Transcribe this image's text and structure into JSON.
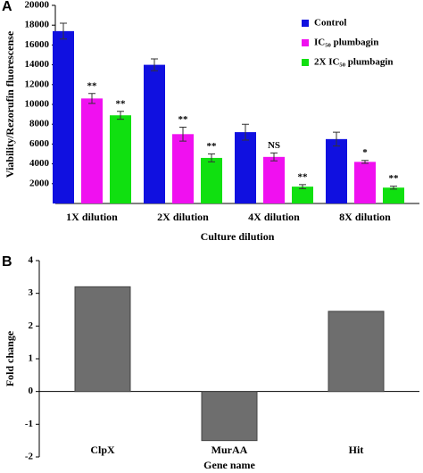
{
  "chart_data": [
    {
      "type": "bar",
      "panel": "A",
      "ylabel": "Viability/Rezorufin fluorescense",
      "xlabel": "Culture dilution",
      "categories": [
        "1X dilution",
        "2X dilution",
        "4X dilution",
        "8X dilution"
      ],
      "series": [
        {
          "name": "Control",
          "color": "#1010e0",
          "values": [
            17400,
            14000,
            7200,
            6500
          ],
          "errors": [
            800,
            600,
            800,
            700
          ],
          "significance": [
            null,
            null,
            null,
            null
          ]
        },
        {
          "name": "IC₅₀ plumbagin",
          "color": "#f010f0",
          "values": [
            10600,
            7000,
            4700,
            4200
          ],
          "errors": [
            500,
            700,
            400,
            150
          ],
          "significance": [
            "**",
            "**",
            "NS",
            "*"
          ]
        },
        {
          "name": "2X IC₅₀ plumbagin",
          "color": "#10e010",
          "values": [
            8900,
            4600,
            1700,
            1600
          ],
          "errors": [
            400,
            400,
            200,
            150
          ],
          "significance": [
            "**",
            "**",
            "**",
            "**"
          ]
        }
      ],
      "ylim": [
        0,
        20000
      ],
      "yticks": [
        2000,
        4000,
        6000,
        8000,
        10000,
        12000,
        14000,
        16000,
        18000,
        20000
      ],
      "legend": "top-right"
    },
    {
      "type": "bar",
      "panel": "B",
      "ylabel": "Fold change",
      "xlabel": "Gene name",
      "categories": [
        "ClpX",
        "MurAA",
        "Hit"
      ],
      "values": [
        3.2,
        -1.5,
        2.45
      ],
      "color": "#6e6e6e",
      "ylim": [
        -2,
        4
      ],
      "yticks": [
        -2,
        -1,
        0,
        1,
        2,
        3,
        4
      ]
    }
  ]
}
